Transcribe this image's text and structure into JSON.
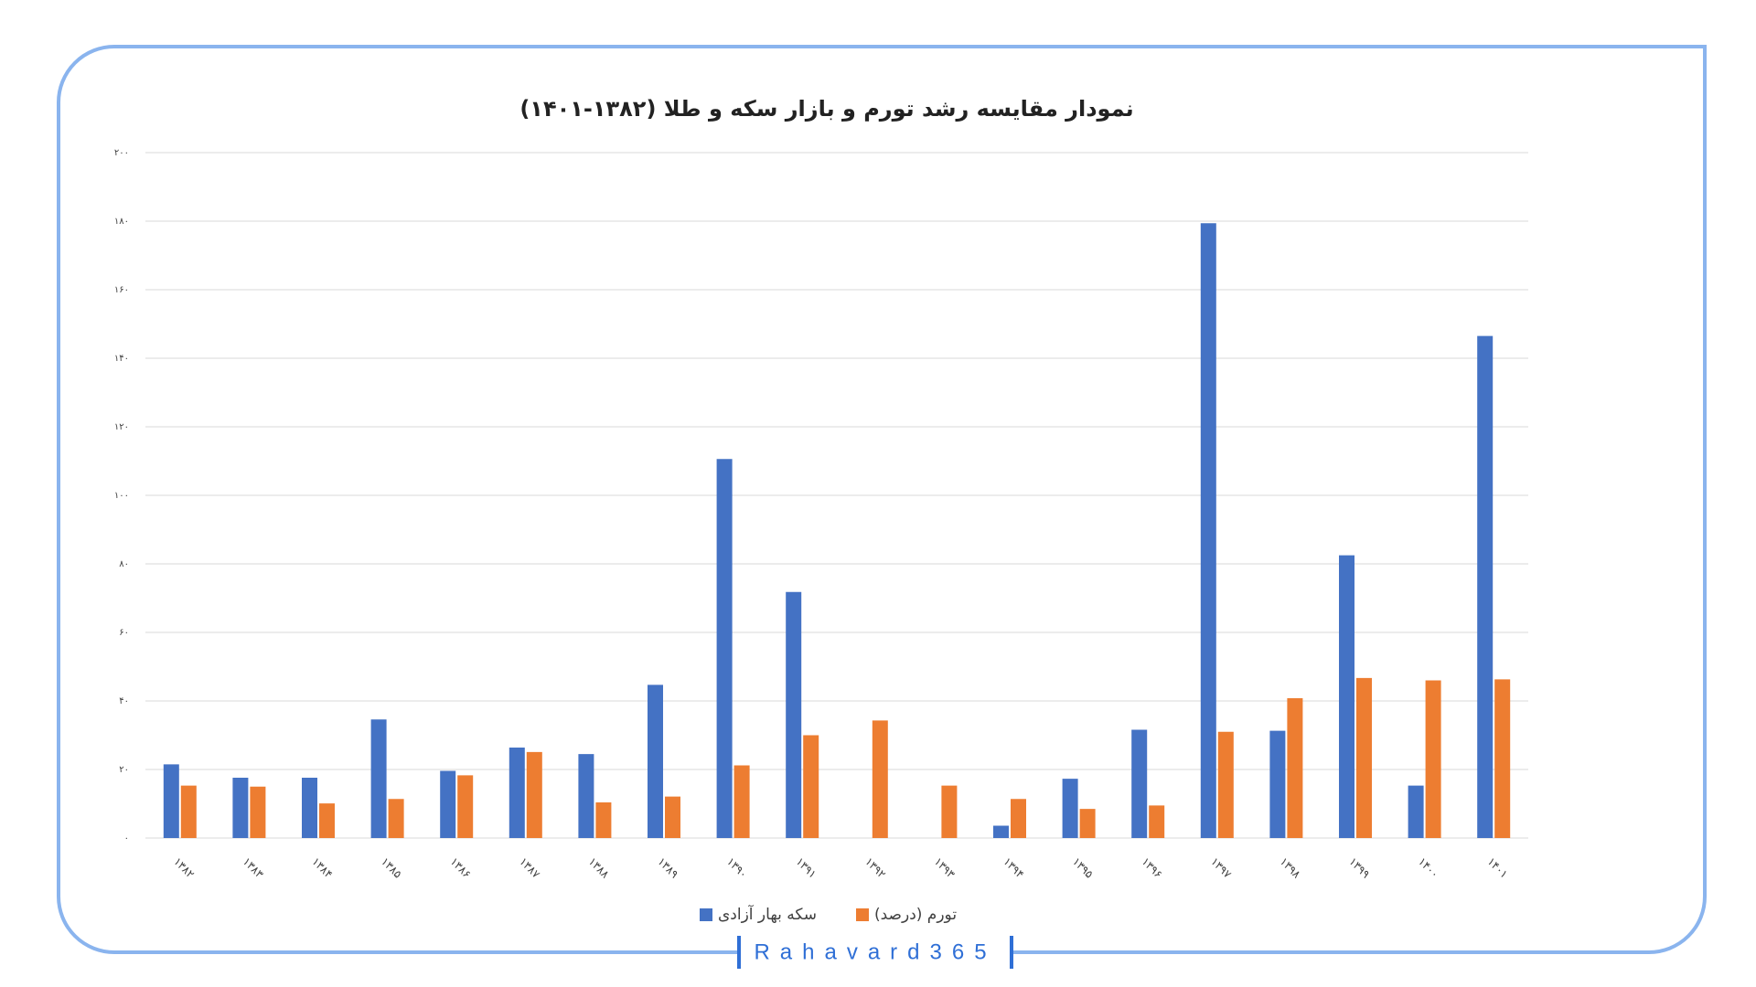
{
  "chart_data": {
    "type": "bar",
    "title": "نمودار مقایسه رشد تورم و بازار سکه و طلا (۱۳۸۲-۱۴۰۱)",
    "categories": [
      "۱۳۸۲",
      "۱۳۸۳",
      "۱۳۸۴",
      "۱۳۸۵",
      "۱۳۸۶",
      "۱۳۸۷",
      "۱۳۸۸",
      "۱۳۸۹",
      "۱۳۹۰",
      "۱۳۹۱",
      "۱۳۹۲",
      "۱۳۹۳",
      "۱۳۹۴",
      "۱۳۹۵",
      "۱۳۹۶",
      "۱۳۹۷",
      "۱۳۹۸",
      "۱۳۹۹",
      "۱۴۰۰",
      "۱۴۰۱"
    ],
    "series": [
      {
        "name": "سکه بهار آزادی",
        "color": "#4472c4",
        "values": [
          21.5,
          17.6,
          17.6,
          34.6,
          19.6,
          26.4,
          24.5,
          44.7,
          110.6,
          71.8,
          null,
          null,
          3.6,
          17.3,
          31.6,
          179.4,
          31.3,
          82.5,
          15.3,
          146.5
        ]
      },
      {
        "name": "تورم (درصد)",
        "color": "#ed7d31",
        "values": [
          15.3,
          15,
          10.1,
          11.4,
          18.3,
          25.1,
          10.4,
          12.1,
          21.2,
          30,
          34.3,
          15.3,
          11.4,
          8.5,
          9.5,
          31,
          40.8,
          46.7,
          46,
          46.3
        ]
      }
    ],
    "ylim": [
      0,
      200
    ],
    "yticks": [
      {
        "value": 0,
        "label": "۰"
      },
      {
        "value": 20,
        "label": "۲۰"
      },
      {
        "value": 40,
        "label": "۴۰"
      },
      {
        "value": 60,
        "label": "۶۰"
      },
      {
        "value": 80,
        "label": "۸۰"
      },
      {
        "value": 100,
        "label": "۱۰۰"
      },
      {
        "value": 120,
        "label": "۱۲۰"
      },
      {
        "value": 140,
        "label": "۱۴۰"
      },
      {
        "value": 160,
        "label": "۱۶۰"
      },
      {
        "value": 180,
        "label": "۱۸۰"
      },
      {
        "value": 200,
        "label": "۲۰۰"
      }
    ],
    "grid": true,
    "legend": "bottom",
    "watermark": "Rahavard365"
  }
}
